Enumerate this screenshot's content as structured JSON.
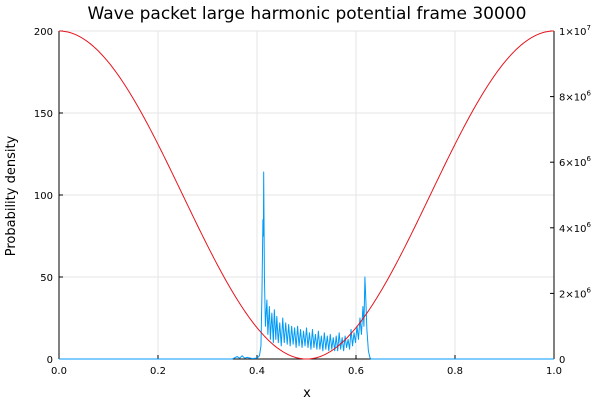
{
  "chart_data": {
    "type": "line",
    "title": "Wave packet large harmonic potential frame 30000",
    "xlabel": "x",
    "ylabel": "Probability density",
    "grid": true,
    "legend": "none",
    "x_axis": {
      "range": [
        0.0,
        1.0
      ],
      "ticks": [
        0.0,
        0.2,
        0.4,
        0.6,
        0.8,
        1.0
      ],
      "tick_labels": [
        "0.0",
        "0.2",
        "0.4",
        "0.6",
        "0.8",
        "1.0"
      ]
    },
    "y_axis_left": {
      "range": [
        0,
        200
      ],
      "ticks": [
        0,
        50,
        100,
        150,
        200
      ],
      "tick_labels": [
        "0",
        "50",
        "100",
        "150",
        "200"
      ]
    },
    "y_axis_right": {
      "range": [
        0,
        10000000
      ],
      "ticks": [
        0,
        2000000,
        4000000,
        6000000,
        8000000,
        10000000
      ],
      "tick_labels": [
        {
          "mantissa": "0",
          "exponent": ""
        },
        {
          "mantissa": "2×10",
          "exponent": "6"
        },
        {
          "mantissa": "4×10",
          "exponent": "6"
        },
        {
          "mantissa": "6×10",
          "exponent": "6"
        },
        {
          "mantissa": "8×10",
          "exponent": "6"
        },
        {
          "mantissa": "1×10",
          "exponent": "7"
        }
      ]
    },
    "series": [
      {
        "axis": "left",
        "color": "#009af9",
        "points": [
          [
            0.0,
            0
          ],
          [
            0.35,
            0
          ],
          [
            0.36,
            1.5
          ],
          [
            0.365,
            0.5
          ],
          [
            0.37,
            2
          ],
          [
            0.375,
            0.5
          ],
          [
            0.38,
            1
          ],
          [
            0.39,
            0.3
          ],
          [
            0.4,
            0.5
          ],
          [
            0.405,
            2
          ],
          [
            0.408,
            8
          ],
          [
            0.41,
            40
          ],
          [
            0.412,
            85
          ],
          [
            0.413,
            75
          ],
          [
            0.4135,
            114
          ],
          [
            0.415,
            50
          ],
          [
            0.417,
            20
          ],
          [
            0.42,
            36
          ],
          [
            0.422,
            15
          ],
          [
            0.425,
            32
          ],
          [
            0.427,
            12
          ],
          [
            0.43,
            28
          ],
          [
            0.433,
            10
          ],
          [
            0.435,
            30
          ],
          [
            0.438,
            12
          ],
          [
            0.44,
            26
          ],
          [
            0.443,
            10
          ],
          [
            0.446,
            22
          ],
          [
            0.449,
            8
          ],
          [
            0.452,
            25
          ],
          [
            0.455,
            10
          ],
          [
            0.458,
            22
          ],
          [
            0.461,
            9
          ],
          [
            0.464,
            21
          ],
          [
            0.467,
            8
          ],
          [
            0.47,
            20
          ],
          [
            0.473,
            9
          ],
          [
            0.476,
            19
          ],
          [
            0.479,
            7
          ],
          [
            0.482,
            20
          ],
          [
            0.485,
            8
          ],
          [
            0.488,
            18
          ],
          [
            0.491,
            7
          ],
          [
            0.494,
            17
          ],
          [
            0.497,
            8
          ],
          [
            0.5,
            19
          ],
          [
            0.503,
            7
          ],
          [
            0.506,
            16
          ],
          [
            0.509,
            6
          ],
          [
            0.512,
            18
          ],
          [
            0.515,
            7
          ],
          [
            0.518,
            15
          ],
          [
            0.521,
            6
          ],
          [
            0.524,
            17
          ],
          [
            0.527,
            6
          ],
          [
            0.53,
            14
          ],
          [
            0.533,
            5
          ],
          [
            0.536,
            16
          ],
          [
            0.539,
            6
          ],
          [
            0.542,
            14
          ],
          [
            0.545,
            5
          ],
          [
            0.548,
            15
          ],
          [
            0.551,
            6
          ],
          [
            0.554,
            13
          ],
          [
            0.557,
            5
          ],
          [
            0.56,
            14
          ],
          [
            0.563,
            5
          ],
          [
            0.566,
            16
          ],
          [
            0.569,
            6
          ],
          [
            0.572,
            13
          ],
          [
            0.575,
            5
          ],
          [
            0.578,
            14
          ],
          [
            0.581,
            7
          ],
          [
            0.584,
            12
          ],
          [
            0.587,
            6
          ],
          [
            0.59,
            18
          ],
          [
            0.593,
            8
          ],
          [
            0.596,
            16
          ],
          [
            0.599,
            10
          ],
          [
            0.602,
            20
          ],
          [
            0.605,
            12
          ],
          [
            0.608,
            25
          ],
          [
            0.611,
            15
          ],
          [
            0.614,
            32
          ],
          [
            0.616,
            20
          ],
          [
            0.618,
            50
          ],
          [
            0.62,
            35
          ],
          [
            0.622,
            18
          ],
          [
            0.625,
            5
          ],
          [
            0.628,
            1
          ],
          [
            0.63,
            0
          ],
          [
            1.0,
            0
          ]
        ]
      },
      {
        "axis": "right",
        "color": "#e5151e",
        "function": "5000000*(1+cos(2*pi*x))",
        "domain": [
          0.0,
          1.0
        ]
      }
    ]
  }
}
